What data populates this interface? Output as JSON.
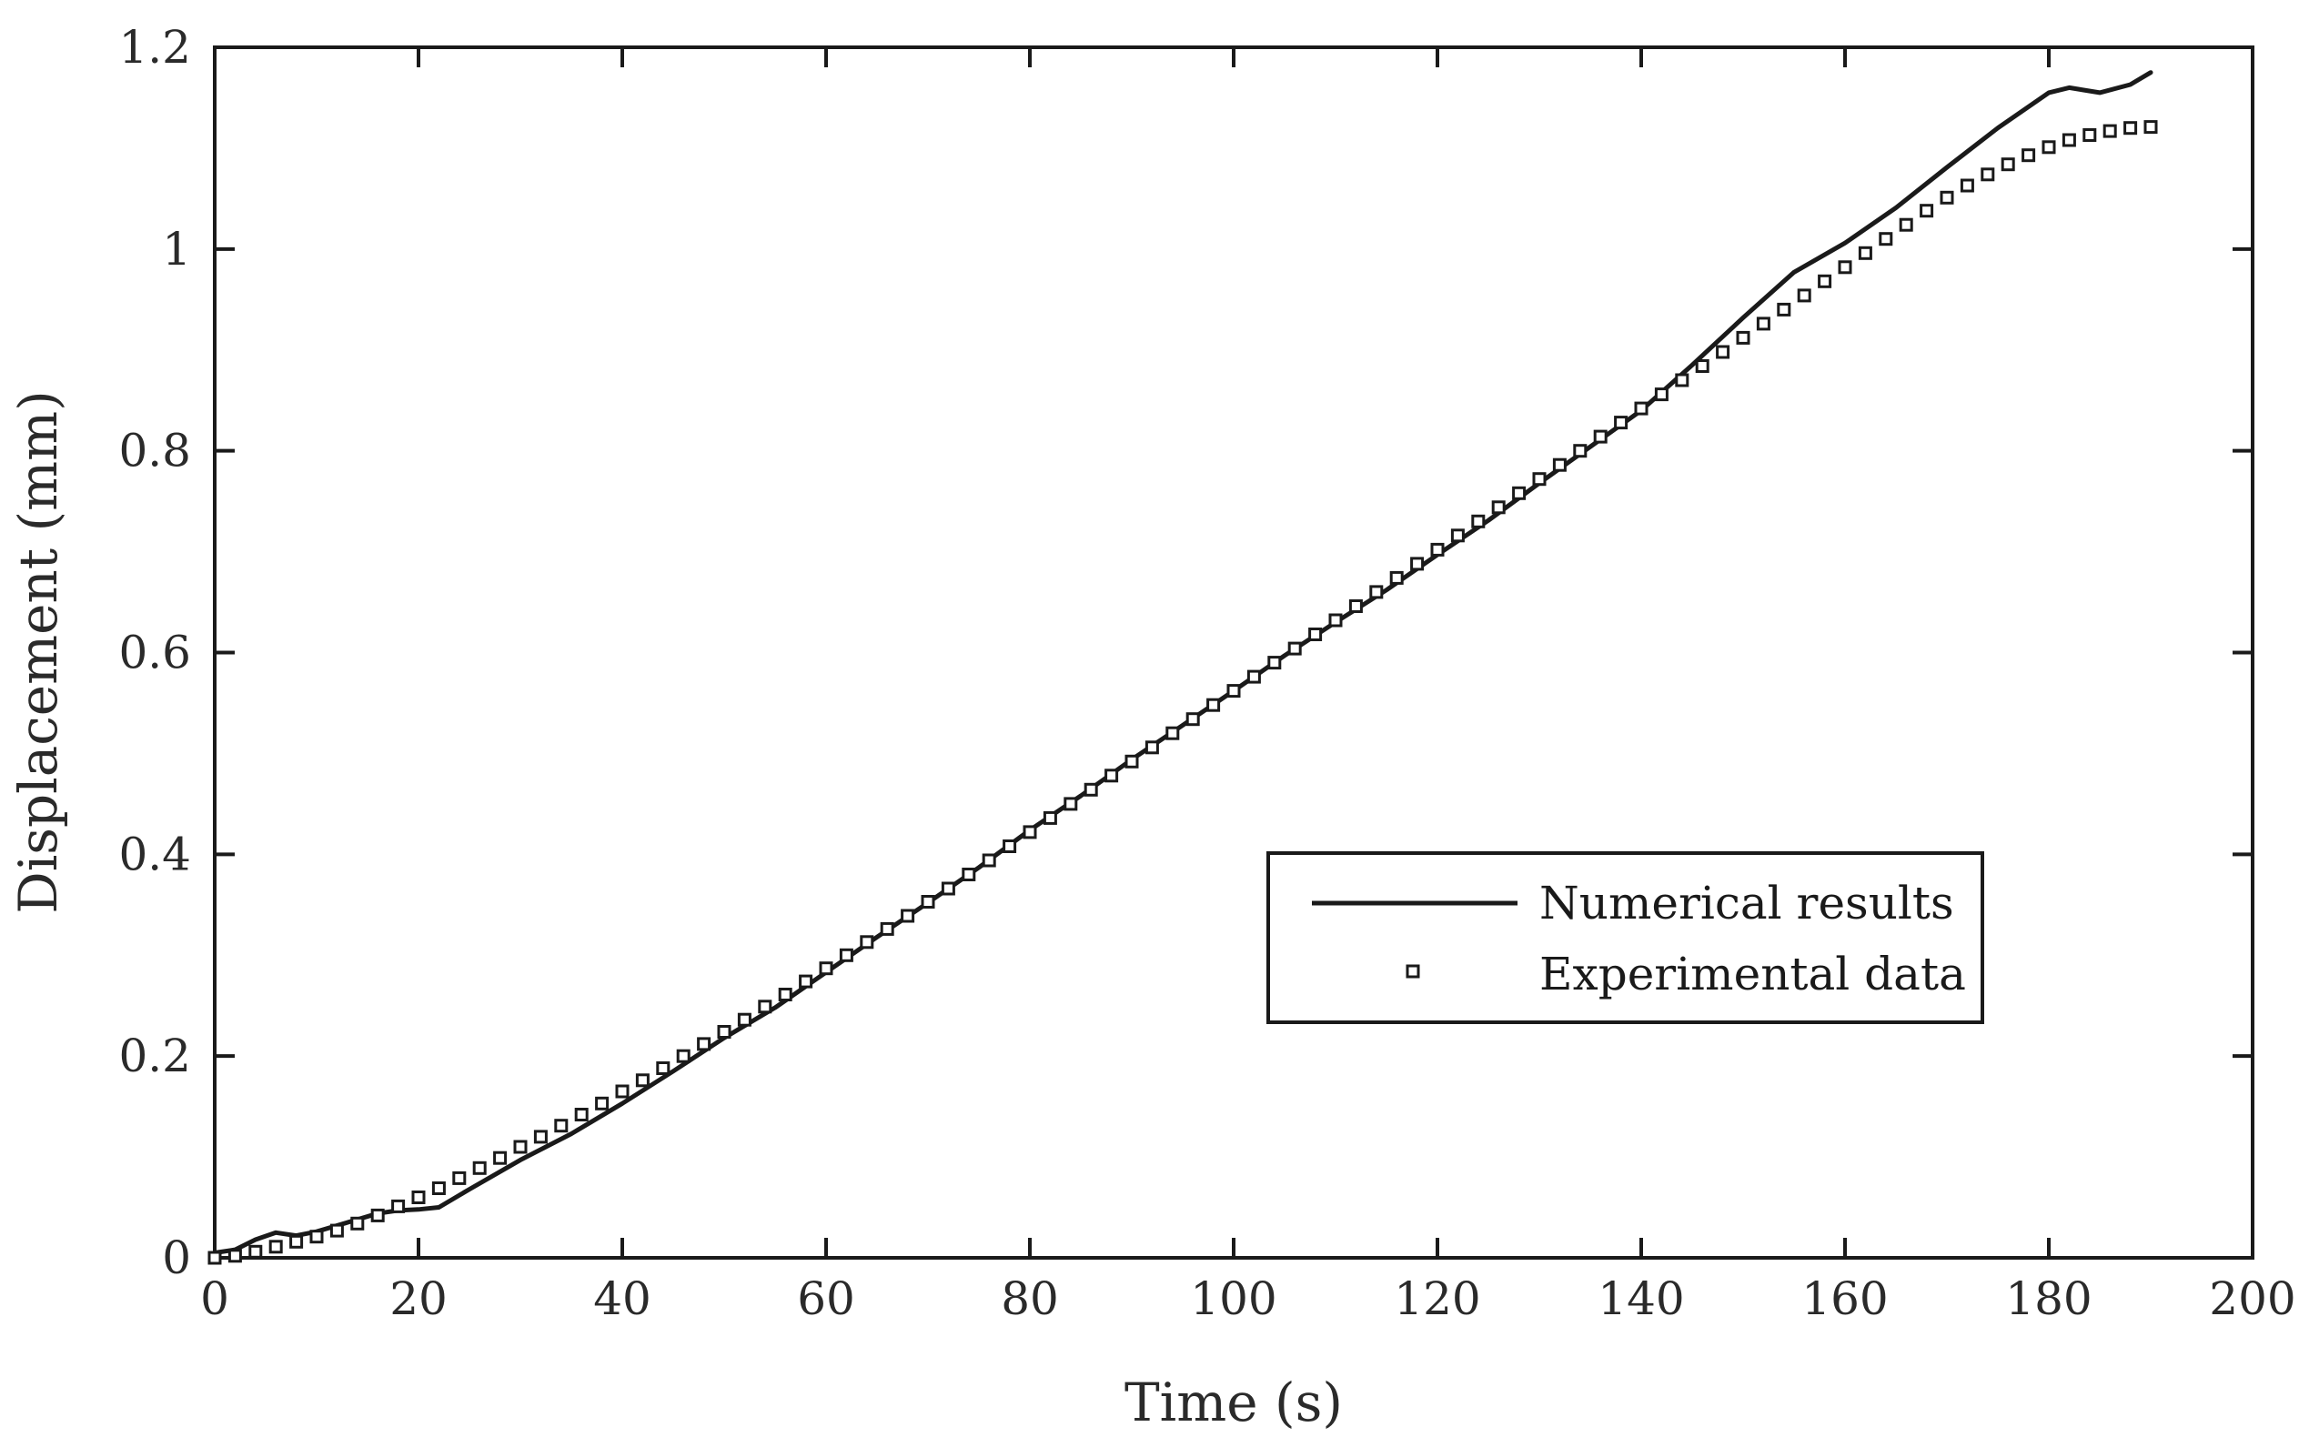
{
  "chart_data": {
    "type": "line",
    "title": "",
    "xlabel": "Time (s)",
    "ylabel": "Displacement (mm)",
    "xlim": [
      0,
      200
    ],
    "ylim": [
      0,
      1.2
    ],
    "xticks": [
      0,
      20,
      40,
      60,
      80,
      100,
      120,
      140,
      160,
      180,
      200
    ],
    "yticks": [
      0,
      0.2,
      0.4,
      0.6,
      0.8,
      1,
      1.2
    ],
    "xtick_labels": [
      "0",
      "20",
      "40",
      "60",
      "80",
      "100",
      "120",
      "140",
      "160",
      "180",
      "200"
    ],
    "ytick_labels": [
      "0",
      "0.2",
      "0.4",
      "0.6",
      "0.8",
      "1",
      "1.2"
    ],
    "grid": false,
    "legend_position": "center-right",
    "series": [
      {
        "name": "Numerical results",
        "style": "line",
        "color": "#1a1a1a",
        "x": [
          0,
          2,
          4,
          6,
          8,
          10,
          12,
          14,
          16,
          18,
          20,
          22,
          25,
          30,
          35,
          40,
          45,
          50,
          55,
          60,
          65,
          70,
          75,
          80,
          85,
          90,
          95,
          100,
          105,
          110,
          115,
          120,
          125,
          130,
          135,
          140,
          145,
          150,
          155,
          160,
          165,
          170,
          175,
          180,
          182,
          185,
          188,
          190
        ],
        "y": [
          0.005,
          0.008,
          0.018,
          0.025,
          0.022,
          0.026,
          0.032,
          0.038,
          0.044,
          0.047,
          0.048,
          0.05,
          0.068,
          0.097,
          0.123,
          0.153,
          0.185,
          0.218,
          0.248,
          0.283,
          0.318,
          0.352,
          0.387,
          0.424,
          0.458,
          0.494,
          0.528,
          0.562,
          0.597,
          0.63,
          0.662,
          0.697,
          0.731,
          0.768,
          0.804,
          0.84,
          0.885,
          0.932,
          0.977,
          1.006,
          1.041,
          1.081,
          1.12,
          1.155,
          1.16,
          1.155,
          1.163,
          1.175
        ]
      },
      {
        "name": "Experimental data",
        "style": "markers",
        "marker": "square",
        "color": "#1a1a1a",
        "x": [
          0,
          2,
          4,
          6,
          8,
          10,
          12,
          14,
          16,
          18,
          20,
          22,
          24,
          26,
          28,
          30,
          32,
          34,
          36,
          38,
          40,
          42,
          44,
          46,
          48,
          50,
          52,
          54,
          56,
          58,
          60,
          62,
          64,
          66,
          68,
          70,
          72,
          74,
          76,
          78,
          80,
          82,
          84,
          86,
          88,
          90,
          92,
          94,
          96,
          98,
          100,
          102,
          104,
          106,
          108,
          110,
          112,
          114,
          116,
          118,
          120,
          122,
          124,
          126,
          128,
          130,
          132,
          134,
          136,
          138,
          140,
          142,
          144,
          146,
          148,
          150,
          152,
          154,
          156,
          158,
          160,
          162,
          164,
          166,
          168,
          170,
          172,
          174,
          176,
          178,
          180,
          182,
          184,
          186,
          188,
          190
        ],
        "y": [
          0.0,
          0.002,
          0.006,
          0.011,
          0.016,
          0.021,
          0.027,
          0.034,
          0.042,
          0.051,
          0.06,
          0.069,
          0.079,
          0.089,
          0.099,
          0.11,
          0.12,
          0.131,
          0.142,
          0.153,
          0.165,
          0.176,
          0.188,
          0.2,
          0.212,
          0.224,
          0.236,
          0.249,
          0.261,
          0.274,
          0.287,
          0.3,
          0.313,
          0.326,
          0.339,
          0.353,
          0.366,
          0.38,
          0.394,
          0.408,
          0.422,
          0.436,
          0.45,
          0.464,
          0.478,
          0.492,
          0.506,
          0.52,
          0.534,
          0.548,
          0.562,
          0.576,
          0.59,
          0.604,
          0.618,
          0.632,
          0.646,
          0.66,
          0.674,
          0.688,
          0.702,
          0.716,
          0.73,
          0.744,
          0.758,
          0.772,
          0.786,
          0.8,
          0.814,
          0.828,
          0.842,
          0.856,
          0.87,
          0.884,
          0.898,
          0.912,
          0.926,
          0.94,
          0.954,
          0.968,
          0.982,
          0.996,
          1.01,
          1.024,
          1.038,
          1.051,
          1.063,
          1.074,
          1.084,
          1.093,
          1.101,
          1.108,
          1.113,
          1.117,
          1.12,
          1.121
        ]
      }
    ]
  }
}
